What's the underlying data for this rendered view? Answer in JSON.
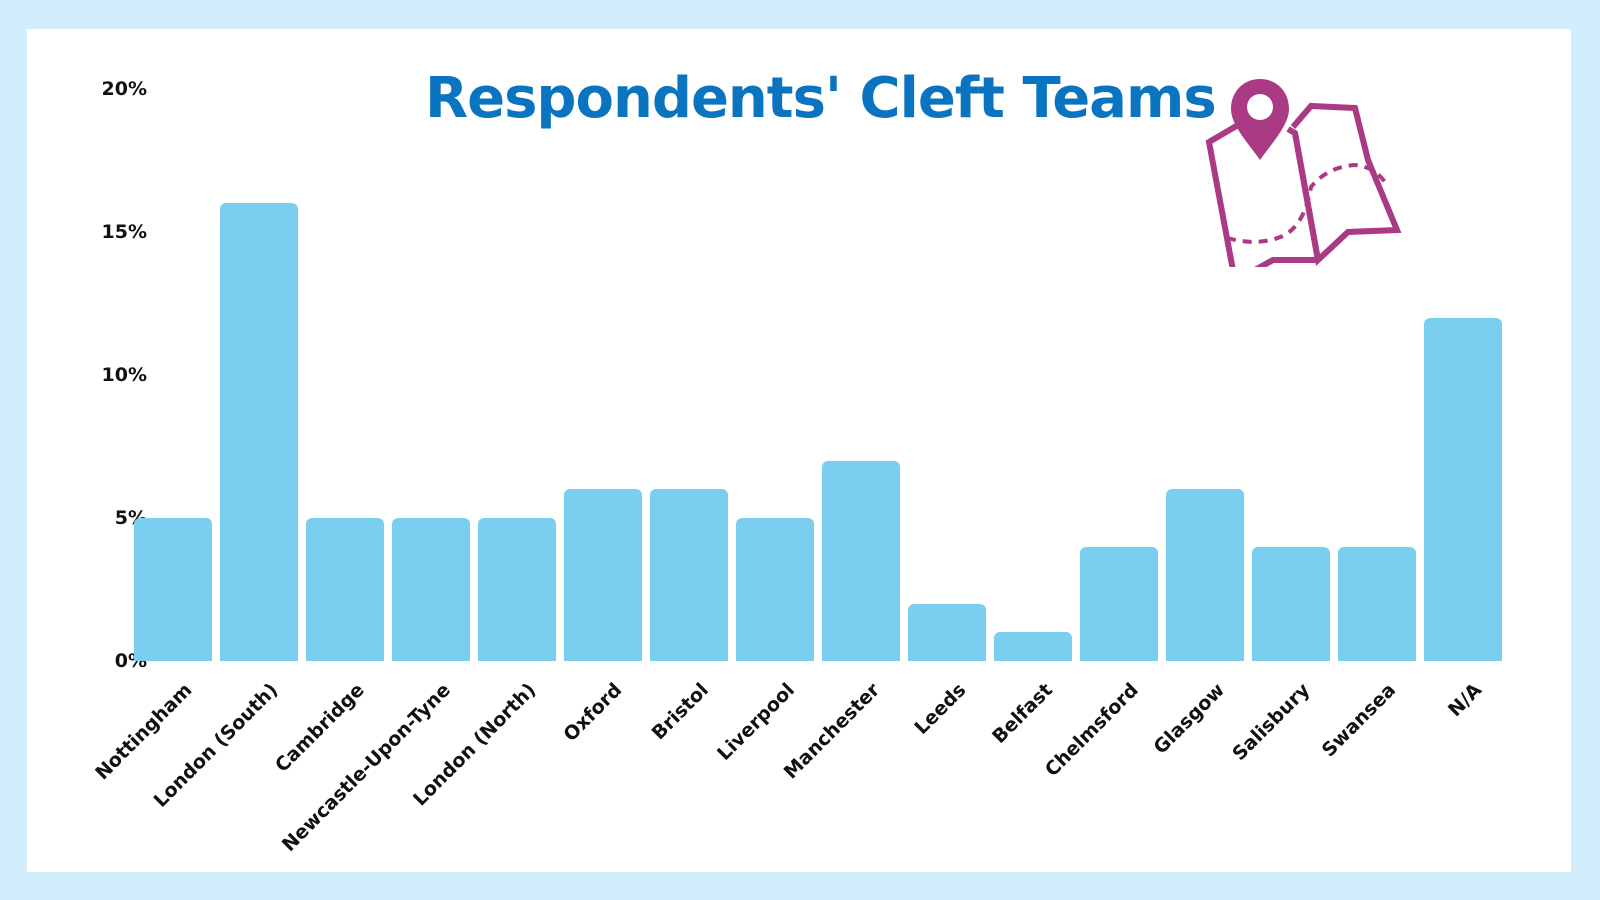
{
  "chart_data": {
    "type": "bar",
    "title": "Respondents' Cleft Teams",
    "xlabel": "",
    "ylabel": "",
    "ylim": [
      0,
      20
    ],
    "yticks": [
      "0%",
      "5%",
      "10%",
      "15%",
      "20%"
    ],
    "grid": false,
    "legend": null,
    "categories": [
      "Nottingham",
      "London (South)",
      "Cambridge",
      "Newcastle-Upon-Tyne",
      "London (North)",
      "Oxford",
      "Bristol",
      "Liverpool",
      "Manchester",
      "Leeds",
      "Belfast",
      "Chelmsford",
      "Glasgow",
      "Salisbury",
      "Swansea",
      "N/A"
    ],
    "values": [
      5,
      16,
      5,
      5,
      5,
      6,
      6,
      5,
      7,
      2,
      1,
      4,
      6,
      4,
      4,
      12
    ],
    "unit": "%",
    "bar_color": "#7acef0"
  },
  "header": {
    "title": "Respondents' Cleft Teams",
    "title_color": "#0a74c0",
    "icon": "map-pin-icon",
    "icon_color": "#ab3a85"
  },
  "axis": {
    "y": [
      "20%",
      "15%",
      "10%",
      "5%",
      "0%"
    ]
  },
  "theme": {
    "background": "#d2edfb",
    "card": "#ffffff"
  }
}
